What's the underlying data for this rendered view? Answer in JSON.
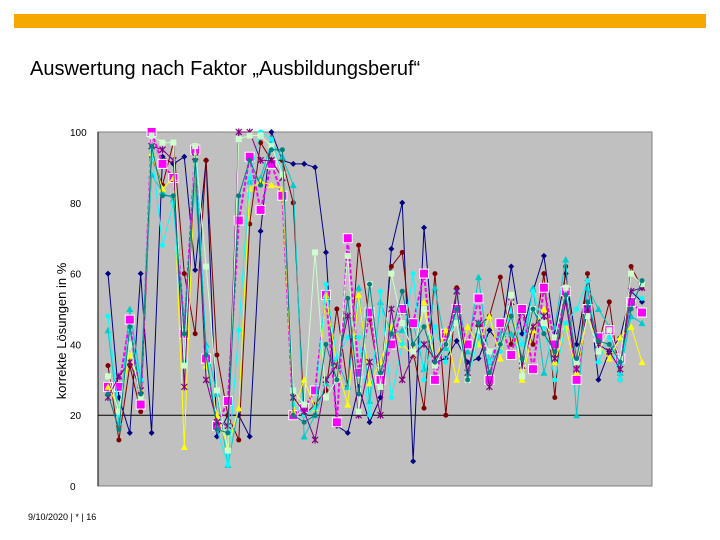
{
  "slide": {
    "title": "Auswertung nach Faktor „Ausbildungsberuf“",
    "footer": "9/10/2020 | * | 16",
    "accent_color": "#f5a800"
  },
  "chart_data": {
    "type": "line",
    "title": "",
    "xlabel": "",
    "ylabel": "korrekte Lösungen in %",
    "ylim": [
      0,
      100
    ],
    "yticks": [
      0,
      20,
      40,
      60,
      80,
      100
    ],
    "grid": "horizontal at 20",
    "legend": "none",
    "plot_background": "#c0c0c0",
    "x": [
      1,
      2,
      3,
      4,
      5,
      6,
      7,
      8,
      9,
      10,
      11,
      12,
      13,
      14,
      15,
      16,
      17,
      18,
      19,
      20,
      21,
      22,
      23,
      24,
      25,
      26,
      27,
      28,
      29,
      30,
      31,
      32,
      33,
      34,
      35,
      36,
      37,
      38,
      39,
      40,
      41,
      42,
      43,
      44,
      45,
      46,
      47,
      48,
      49,
      50
    ],
    "series": [
      {
        "color": "#000080",
        "marker": "diamond",
        "values": [
          60,
          25,
          15,
          60,
          15,
          93,
          91,
          93,
          61,
          92,
          14,
          20,
          20,
          14,
          72,
          100,
          92,
          91,
          91,
          90,
          66,
          17,
          15,
          28,
          18,
          25,
          67,
          80,
          7,
          73,
          35,
          36,
          41,
          35,
          36,
          44,
          40,
          62,
          43,
          55,
          65,
          43,
          60,
          40,
          58,
          30,
          38,
          42,
          55,
          52
        ]
      },
      {
        "color": "#800000",
        "marker": "circle",
        "values": [
          34,
          13,
          34,
          21,
          93,
          85,
          97,
          60,
          43,
          92,
          37,
          20,
          13,
          74,
          97,
          92,
          92,
          80,
          20,
          23,
          27,
          50,
          28,
          68,
          47,
          29,
          62,
          66,
          38,
          22,
          60,
          20,
          56,
          30,
          45,
          48,
          59,
          40,
          50,
          40,
          60,
          25,
          62,
          30,
          60,
          40,
          52,
          30,
          62,
          56
        ]
      },
      {
        "color": "#00cccc",
        "marker": "triangle",
        "values": [
          44,
          18,
          50,
          30,
          88,
          83,
          81,
          47,
          85,
          40,
          26,
          6,
          22,
          86,
          87,
          97,
          93,
          85,
          14,
          20,
          29,
          36,
          28,
          56,
          24,
          52,
          43,
          44,
          46,
          33,
          56,
          39,
          55,
          38,
          59,
          35,
          43,
          43,
          35,
          56,
          32,
          45,
          64,
          20,
          56,
          50,
          45,
          32,
          48,
          46
        ]
      },
      {
        "color": "#ff00ff",
        "marker": "square",
        "values": [
          28,
          28,
          47,
          23,
          100,
          91,
          87,
          43,
          95,
          36,
          17,
          24,
          75,
          93,
          78,
          91,
          82,
          20,
          22,
          27,
          54,
          18,
          70,
          32,
          49,
          30,
          40,
          50,
          46,
          60,
          30,
          43,
          50,
          40,
          53,
          30,
          46,
          37,
          50,
          33,
          56,
          40,
          55,
          30,
          50,
          42,
          44,
          36,
          52,
          49
        ]
      },
      {
        "color": "#ffff00",
        "marker": "triangle",
        "values": [
          28,
          22,
          37,
          27,
          94,
          84,
          87,
          11,
          93,
          34,
          20,
          11,
          22,
          84,
          86,
          85,
          84,
          21,
          30,
          22,
          54,
          34,
          23,
          54,
          29,
          35,
          45,
          40,
          37,
          52,
          35,
          44,
          30,
          45,
          40,
          48,
          36,
          52,
          30,
          44,
          50,
          35,
          45,
          32,
          48,
          40,
          36,
          42,
          45,
          35
        ]
      },
      {
        "color": "#00ffff",
        "marker": "circle",
        "values": [
          48,
          20,
          44,
          30,
          95,
          68,
          80,
          35,
          96,
          39,
          16,
          6,
          44,
          87,
          100,
          98,
          88,
          23,
          20,
          22,
          57,
          36,
          42,
          42,
          20,
          55,
          25,
          40,
          60,
          30,
          45,
          35,
          50,
          30,
          42,
          35,
          38,
          50,
          40,
          55,
          45,
          30,
          46,
          50,
          58,
          35,
          42,
          30,
          55,
          53
        ]
      },
      {
        "color": "#800080",
        "marker": "star",
        "values": [
          25,
          31,
          35,
          27,
          96,
          95,
          92,
          28,
          93,
          30,
          18,
          17,
          100,
          100,
          92,
          92,
          87,
          25,
          21,
          13,
          30,
          34,
          48,
          20,
          35,
          20,
          50,
          30,
          37,
          40,
          36,
          40,
          55,
          32,
          46,
          28,
          40,
          52,
          34,
          45,
          48,
          36,
          52,
          33,
          50,
          40,
          38,
          33,
          55,
          56
        ]
      },
      {
        "color": "#ccffcc",
        "marker": "square",
        "values": [
          31,
          21,
          40,
          25,
          99,
          97,
          97,
          34,
          96,
          62,
          27,
          10,
          98,
          99,
          99,
          96,
          88,
          27,
          23,
          66,
          25,
          30,
          65,
          21,
          57,
          28,
          60,
          46,
          38,
          50,
          34,
          40,
          46,
          30,
          44,
          38,
          40,
          54,
          31,
          50,
          46,
          42,
          56,
          35,
          48,
          38,
          44,
          36,
          60,
          57
        ]
      },
      {
        "color": "#008080",
        "marker": "circle",
        "values": [
          26,
          16,
          45,
          26,
          96,
          82,
          82,
          43,
          92,
          37,
          16,
          15,
          82,
          92,
          85,
          95,
          95,
          20,
          18,
          20,
          40,
          30,
          53,
          26,
          57,
          32,
          43,
          55,
          40,
          45,
          35,
          40,
          50,
          30,
          46,
          32,
          40,
          48,
          36,
          50,
          43,
          38,
          54,
          36,
          52,
          41,
          40,
          35,
          50,
          58
        ]
      }
    ]
  }
}
